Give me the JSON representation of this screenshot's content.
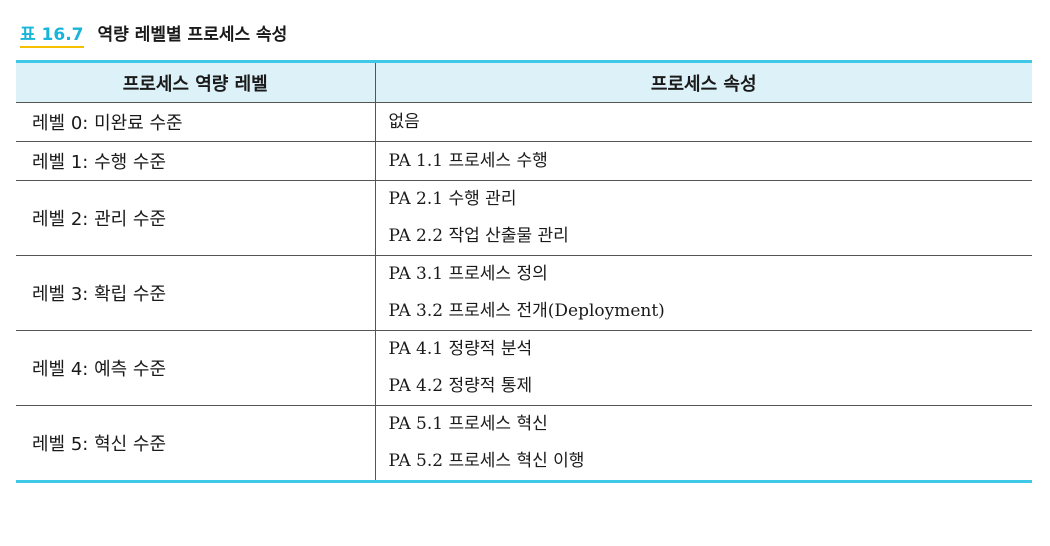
{
  "caption": {
    "label": "표 16.7",
    "title": "역량 레벨별 프로세스 속성"
  },
  "table": {
    "headers": [
      "프로세스 역량 레벨",
      "프로세스 속성"
    ],
    "rows": [
      {
        "level": "레벨 0: 미완료 수준",
        "attributes": [
          "없음"
        ]
      },
      {
        "level": "레벨 1: 수행 수준",
        "attributes": [
          "PA 1.1 프로세스 수행"
        ]
      },
      {
        "level": "레벨 2: 관리 수준",
        "attributes": [
          "PA 2.1 수행 관리",
          "PA 2.2 작업 산출물 관리"
        ]
      },
      {
        "level": "레벨 3: 확립 수준",
        "attributes": [
          "PA 3.1 프로세스 정의",
          "PA 3.2 프로세스 전개(Deployment)"
        ]
      },
      {
        "level": "레벨 4: 예측 수준",
        "attributes": [
          "PA 4.1 정량적 분석",
          "PA 4.2 정량적 통제"
        ]
      },
      {
        "level": "레벨 5: 혁신 수준",
        "attributes": [
          "PA 5.1 프로세스 혁신",
          "PA 5.2 프로세스 혁신 이행"
        ]
      }
    ]
  },
  "colors": {
    "caption_label": "#19b5d8",
    "caption_underline": "#f6c000",
    "table_rule": "#40c8e8",
    "header_background": "#dcf1f8"
  }
}
